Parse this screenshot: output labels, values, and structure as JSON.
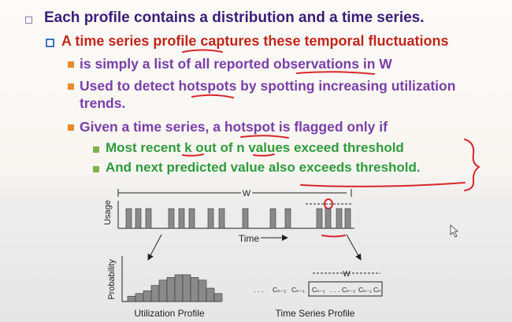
{
  "bullets": [
    {
      "level": 1,
      "text": "Each profile contains a distribution and a time series."
    },
    {
      "level": 2,
      "text": "A time series profile captures these temporal fluctuations"
    },
    {
      "level": 3,
      "text": "is simply a list of all reported observations in W"
    },
    {
      "level": 3,
      "text": "Used to detect hotspots by spotting increasing utilization"
    },
    {
      "level": 3,
      "text": "trends."
    },
    {
      "level": 3,
      "text": "Given a time series, a hotspot is flagged only if"
    },
    {
      "level": 4,
      "text": "Most recent k out of n values exceed threshold"
    },
    {
      "level": 4,
      "text": "And next predicted value also exceeds threshold."
    }
  ],
  "figure": {
    "window_label": "W",
    "y_axis_label": "Usage",
    "x_axis_label": "Time",
    "prob_axis_label": "Probability",
    "utilization_caption": "Utilization Profile",
    "timeseries_caption": "Time Series Profile",
    "series_window_label": "W",
    "series_cells": [
      ". . . C",
      ". . . C"
    ],
    "series_items": [
      "Cₙ₋₂",
      "Cₙ₋₁",
      "Cₙ₋₁",
      "Cₙ₋₂",
      "Cₙ₋₁",
      "Cₙ"
    ]
  },
  "histogram": {
    "values": [
      2,
      3,
      4,
      6,
      8,
      9,
      10,
      10,
      9,
      8,
      5,
      3
    ]
  },
  "usage_bars": {
    "heights": [
      1,
      1,
      1,
      1,
      1,
      1,
      1,
      1,
      1,
      1,
      1,
      1,
      1,
      1,
      1
    ]
  }
}
